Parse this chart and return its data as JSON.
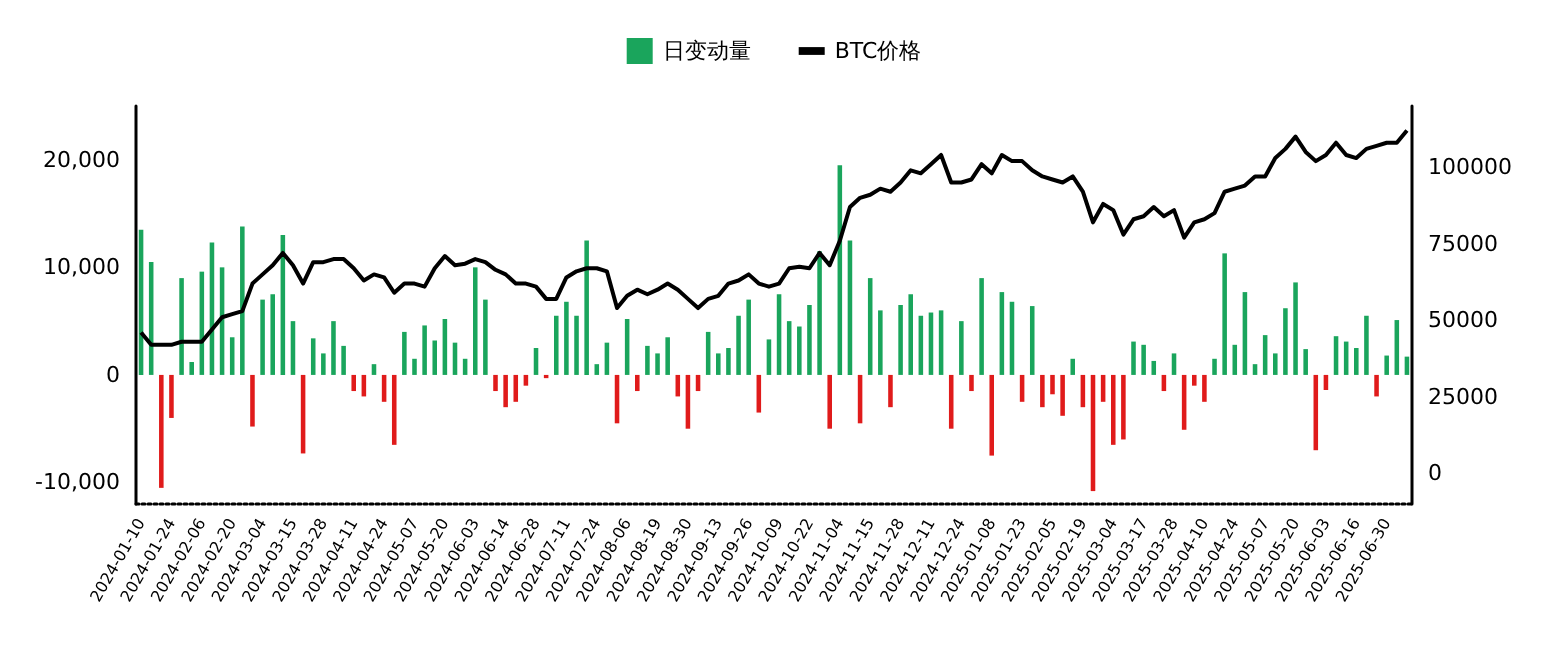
{
  "chart_data": {
    "type": "bar",
    "legend": "top",
    "categories": [
      "2024-01-10",
      null,
      null,
      "2024-01-24",
      null,
      null,
      "2024-02-06",
      null,
      null,
      "2024-02-20",
      null,
      null,
      "2024-03-04",
      null,
      null,
      "2024-03-15",
      null,
      null,
      "2024-03-28",
      null,
      null,
      "2024-04-11",
      null,
      null,
      "2024-04-24",
      null,
      null,
      "2024-05-07",
      null,
      null,
      "2024-05-20",
      null,
      null,
      "2024-06-03",
      null,
      null,
      "2024-06-14",
      null,
      null,
      "2024-06-28",
      null,
      null,
      "2024-07-11",
      null,
      null,
      "2024-07-24",
      null,
      null,
      "2024-08-06",
      null,
      null,
      "2024-08-19",
      null,
      null,
      "2024-08-30",
      null,
      null,
      "2024-09-13",
      null,
      null,
      "2024-09-26",
      null,
      null,
      "2024-10-09",
      null,
      null,
      "2024-10-22",
      null,
      null,
      "2024-11-04",
      null,
      null,
      "2024-11-15",
      null,
      null,
      "2024-11-28",
      null,
      null,
      "2024-12-11",
      null,
      null,
      "2024-12-24",
      null,
      null,
      "2025-01-08",
      null,
      null,
      "2025-01-23",
      null,
      null,
      "2025-02-05",
      null,
      null,
      "2025-02-19",
      null,
      null,
      "2025-03-04",
      null,
      null,
      "2025-03-17",
      null,
      null,
      "2025-03-28",
      null,
      null,
      "2025-04-10",
      null,
      null,
      "2025-04-24",
      null,
      null,
      "2025-05-07",
      null,
      null,
      "2025-05-20",
      null,
      null,
      "2025-06-03",
      null,
      null,
      "2025-06-16",
      null,
      null,
      "2025-06-30",
      null,
      null
    ],
    "ylim": [
      -12000,
      25000
    ],
    "yticks": [
      {
        "value": -10000,
        "label": "-10,000"
      },
      {
        "value": 0,
        "label": "0"
      },
      {
        "value": 10000,
        "label": "10,000"
      },
      {
        "value": 20000,
        "label": "20,000"
      }
    ],
    "y2lim": [
      -10000,
      120000
    ],
    "y2ticks": [
      0,
      25000,
      50000,
      75000,
      100000
    ],
    "series": [
      {
        "name": "日变动量",
        "color": "#1aa55c",
        "colors": [
          "#1aa55c",
          "#1aa55c",
          "#e01b1b",
          "#e01b1b",
          "#1aa55c",
          "#1aa55c",
          "#1aa55c",
          "#1aa55c",
          "#1aa55c",
          "#1aa55c",
          "#1aa55c",
          "#e01b1b",
          "#1aa55c",
          "#1aa55c",
          "#1aa55c",
          "#1aa55c",
          "#e01b1b",
          "#1aa55c",
          "#1aa55c",
          "#1aa55c",
          "#1aa55c",
          "#e01b1b",
          "#e01b1b",
          "#1aa55c",
          "#e01b1b",
          "#e01b1b",
          "#1aa55c",
          "#1aa55c",
          "#1aa55c",
          "#1aa55c",
          "#1aa55c",
          "#1aa55c",
          "#1aa55c",
          "#1aa55c",
          "#1aa55c",
          "#e01b1b",
          "#e01b1b",
          "#e01b1b",
          "#e01b1b",
          "#1aa55c",
          "#e01b1b",
          "#1aa55c",
          "#1aa55c",
          "#1aa55c",
          "#1aa55c",
          "#1aa55c",
          "#1aa55c",
          "#e01b1b",
          "#1aa55c",
          "#e01b1b",
          "#1aa55c",
          "#1aa55c",
          "#1aa55c",
          "#e01b1b",
          "#e01b1b",
          "#e01b1b",
          "#1aa55c",
          "#1aa55c",
          "#1aa55c",
          "#1aa55c",
          "#1aa55c",
          "#e01b1b",
          "#1aa55c",
          "#1aa55c",
          "#1aa55c",
          "#1aa55c",
          "#1aa55c",
          "#1aa55c",
          "#e01b1b",
          "#1aa55c",
          "#1aa55c",
          "#e01b1b",
          "#1aa55c",
          "#1aa55c",
          "#e01b1b",
          "#1aa55c",
          "#1aa55c",
          "#1aa55c",
          "#1aa55c",
          "#1aa55c",
          "#e01b1b",
          "#1aa55c",
          "#e01b1b",
          "#1aa55c",
          "#e01b1b",
          "#1aa55c",
          "#1aa55c",
          "#e01b1b",
          "#1aa55c",
          "#e01b1b",
          "#e01b1b",
          "#e01b1b",
          "#1aa55c",
          "#e01b1b",
          "#e01b1b",
          "#e01b1b",
          "#e01b1b",
          "#e01b1b",
          "#1aa55c",
          "#1aa55c",
          "#1aa55c",
          "#e01b1b",
          "#1aa55c",
          "#e01b1b",
          "#e01b1b",
          "#e01b1b",
          "#1aa55c",
          "#1aa55c",
          "#1aa55c",
          "#1aa55c",
          "#1aa55c",
          "#1aa55c",
          "#1aa55c",
          "#1aa55c",
          "#1aa55c",
          "#1aa55c",
          "#e01b1b",
          "#e01b1b",
          "#1aa55c",
          "#1aa55c",
          "#1aa55c",
          "#1aa55c",
          "#e01b1b",
          "#1aa55c",
          "#1aa55c",
          "#1aa55c"
        ],
        "values": [
          13500,
          10500,
          -10500,
          -4000,
          9000,
          1200,
          9600,
          12300,
          10000,
          3500,
          13800,
          -4800,
          7000,
          7500,
          13000,
          5000,
          -7300,
          3400,
          2000,
          5000,
          2700,
          -1500,
          -2000,
          1000,
          -2500,
          -6500,
          4000,
          1500,
          4600,
          3200,
          5200,
          3000,
          1500,
          10000,
          7000,
          -1500,
          -3000,
          -2500,
          -1000,
          2500,
          -300,
          5500,
          6800,
          5500,
          12500,
          1000,
          3000,
          -4500,
          5200,
          -1500,
          2700,
          2000,
          3500,
          -2000,
          -5000,
          -1500,
          4000,
          2000,
          2500,
          5500,
          7000,
          -3500,
          3300,
          7500,
          5000,
          4500,
          6500,
          11500,
          -5000,
          19500,
          12500,
          -4500,
          9000,
          6000,
          -3000,
          6500,
          7500,
          5500,
          5800,
          6000,
          -5000,
          5000,
          -1500,
          9000,
          -7500,
          7700,
          6800,
          -2500,
          6400,
          -3000,
          -1800,
          -3800,
          1500,
          -3000,
          -10800,
          -2500,
          -6500,
          -6000,
          3100,
          2800,
          1300,
          -1500,
          2000,
          -5100,
          -1000,
          -2500,
          1500,
          11300,
          2800,
          7700,
          1000,
          3700,
          2000,
          6200,
          8600,
          2400,
          -7000,
          -1400,
          3600,
          3100,
          2500,
          5500,
          -2000,
          1800,
          5100,
          1700
        ]
      },
      {
        "name": "BTC价格",
        "type": "line",
        "axis": "y2",
        "color": "#000000",
        "values": [
          46000,
          42000,
          42000,
          42000,
          43000,
          43000,
          43000,
          47000,
          51000,
          52000,
          53000,
          62000,
          65000,
          68000,
          72000,
          68000,
          62000,
          69000,
          69000,
          70000,
          70000,
          67000,
          63000,
          65000,
          64000,
          59000,
          62000,
          62000,
          61000,
          67000,
          71000,
          68000,
          68500,
          70000,
          69000,
          66500,
          65000,
          62000,
          62000,
          61000,
          57000,
          57000,
          64000,
          66000,
          67000,
          67000,
          66000,
          54000,
          58000,
          60000,
          58500,
          60000,
          62000,
          60000,
          57000,
          54000,
          57000,
          58000,
          62000,
          63000,
          65000,
          62000,
          61000,
          62000,
          67000,
          67500,
          67000,
          72000,
          68000,
          76000,
          87000,
          90000,
          91000,
          93000,
          92000,
          95000,
          99000,
          98000,
          101000,
          104000,
          95000,
          95000,
          96000,
          101000,
          98000,
          104000,
          102000,
          102000,
          99000,
          97000,
          96000,
          95000,
          97000,
          92000,
          82000,
          88000,
          86000,
          78000,
          83000,
          84000,
          87000,
          84000,
          86000,
          77000,
          82000,
          83000,
          85000,
          92000,
          93000,
          94000,
          97000,
          97000,
          103000,
          106000,
          110000,
          105000,
          102000,
          104000,
          108000,
          104000,
          103000,
          106000,
          107000,
          108000,
          108000,
          112000
        ]
      }
    ]
  }
}
